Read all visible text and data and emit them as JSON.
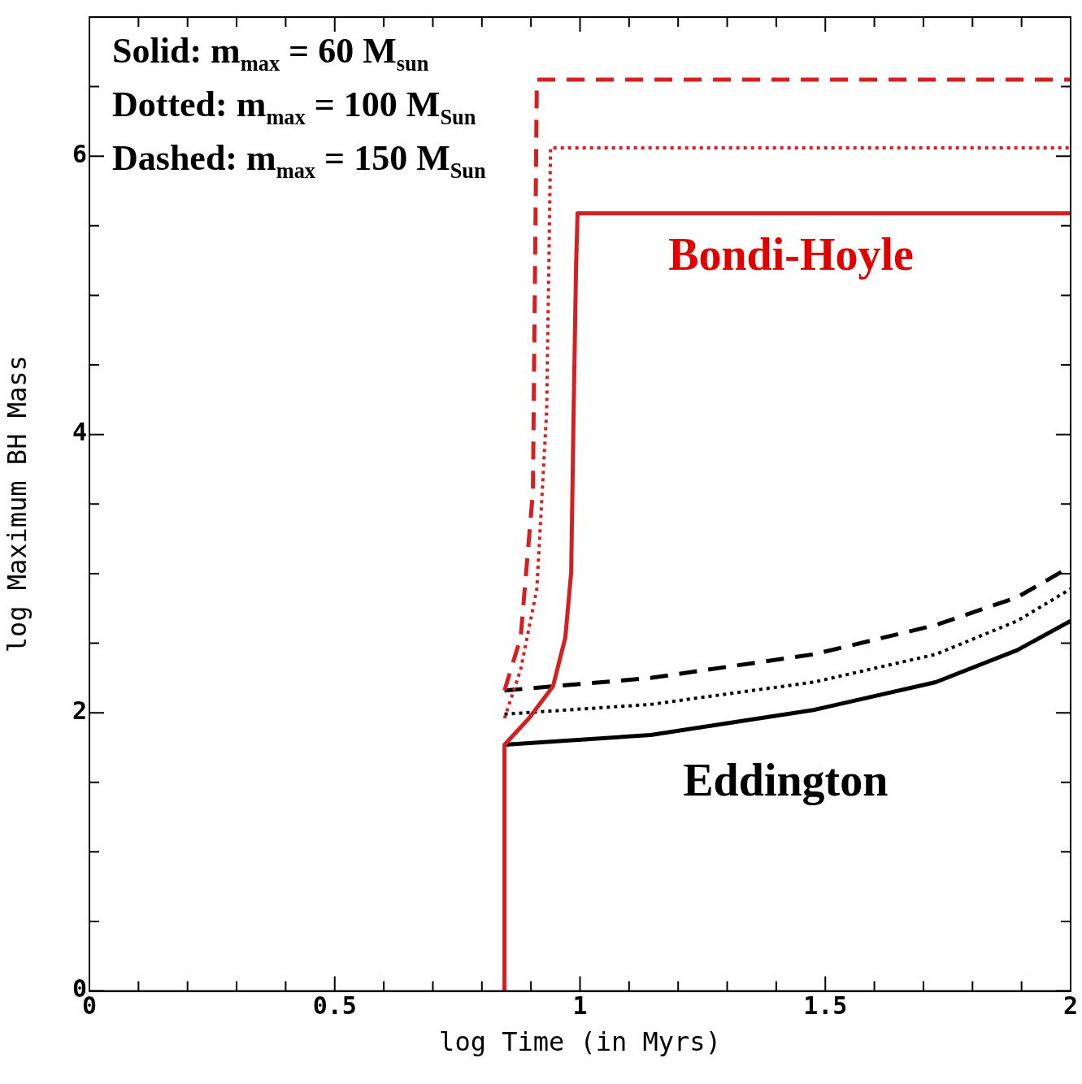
{
  "chart_data": {
    "type": "line",
    "xlabel": "log Time (in Myrs)",
    "ylabel": "log Maximum BH Mass",
    "xlim": [
      0,
      2
    ],
    "ylim": [
      0,
      7
    ],
    "xticks": [
      0,
      {
        "value": 0.1,
        "label": null
      },
      {
        "value": 0.2,
        "label": null
      },
      {
        "value": 0.3,
        "label": null
      },
      {
        "value": 0.4,
        "label": null
      },
      0.5,
      {
        "value": 0.6,
        "label": null
      },
      {
        "value": 0.7,
        "label": null
      },
      {
        "value": 0.8,
        "label": null
      },
      {
        "value": 0.9,
        "label": null
      },
      1,
      {
        "value": 1.1,
        "label": null
      },
      {
        "value": 1.2,
        "label": null
      },
      {
        "value": 1.3,
        "label": null
      },
      {
        "value": 1.4,
        "label": null
      },
      1.5,
      {
        "value": 1.6,
        "label": null
      },
      {
        "value": 1.7,
        "label": null
      },
      {
        "value": 1.8,
        "label": null
      },
      {
        "value": 1.9,
        "label": null
      },
      2
    ],
    "yticks": [
      0,
      {
        "value": 0.5,
        "label": null
      },
      {
        "value": 1,
        "label": null
      },
      {
        "value": 1.5,
        "label": null
      },
      2,
      {
        "value": 2.5,
        "label": null
      },
      {
        "value": 3,
        "label": null
      },
      {
        "value": 3.5,
        "label": null
      },
      4,
      {
        "value": 4.5,
        "label": null
      },
      {
        "value": 5,
        "label": null
      },
      {
        "value": 5.5,
        "label": null
      },
      6,
      {
        "value": 6.5,
        "label": null
      }
    ],
    "grid": false,
    "legend": false,
    "marker": "none",
    "series": [
      {
        "color": "#d42020",
        "line_style": "solid",
        "x": [
          0.846,
          0.846,
          0.896,
          0.945,
          0.97,
          0.982,
          0.987,
          0.992,
          0.995,
          2
        ],
        "values": [
          0,
          1.77,
          1.96,
          2.19,
          2.54,
          3.01,
          4.17,
          5.22,
          5.59,
          5.59
        ]
      },
      {
        "color": "#d42020",
        "line_style": "dotted",
        "x": [
          0.846,
          0.879,
          0.912,
          0.932,
          0.94,
          2
        ],
        "values": [
          1.96,
          2.31,
          2.89,
          4.17,
          6.06,
          6.06
        ]
      },
      {
        "color": "#d42020",
        "line_style": "dashed",
        "x": [
          0.846,
          0.879,
          0.904,
          0.912,
          2
        ],
        "values": [
          2.16,
          2.54,
          3.59,
          6.55,
          6.55
        ]
      },
      {
        "color": "#000000",
        "line_style": "solid",
        "x": [
          0.846,
          1.144,
          1.476,
          1.725,
          1.891,
          2
        ],
        "values": [
          1.77,
          1.84,
          2.02,
          2.22,
          2.45,
          2.66
        ]
      },
      {
        "color": "#000000",
        "line_style": "dotted",
        "x": [
          0.846,
          1.144,
          1.476,
          1.725,
          1.891,
          2
        ],
        "values": [
          1.99,
          2.06,
          2.22,
          2.42,
          2.66,
          2.89
        ]
      },
      {
        "color": "#000000",
        "line_style": "dashed",
        "x": [
          0.846,
          1.144,
          1.476,
          1.725,
          1.891,
          2
        ],
        "values": [
          2.16,
          2.25,
          2.42,
          2.63,
          2.83,
          3.05
        ]
      }
    ],
    "annotations": [
      "Solid:  m$_{max}$ = 60 M$_{sun}$",
      "Dotted: m$_{max}$ = 100 M$_{Sun}$",
      "Dashed: m$_{max}$ = 150 M$_{Sun}$",
      "Bondi-Hoyle",
      "Eddington"
    ]
  }
}
